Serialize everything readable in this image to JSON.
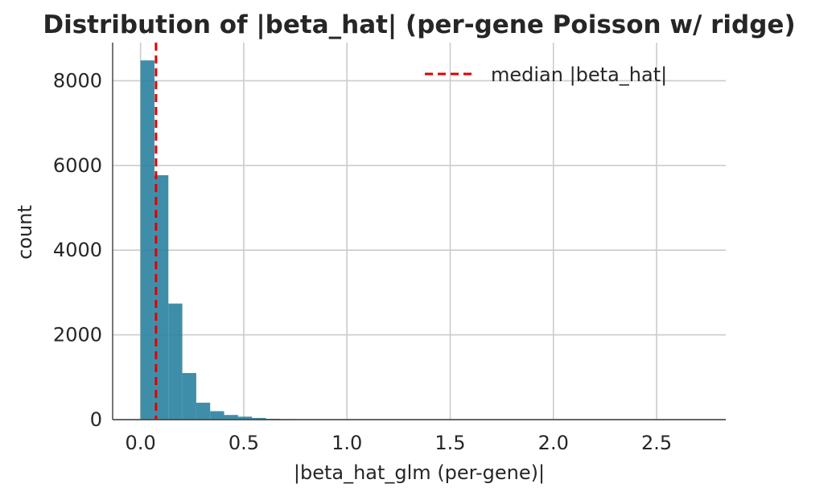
{
  "chart_data": {
    "type": "bar",
    "title": "Distribution of |beta_hat| (per-gene Poisson w/ ridge)",
    "xlabel": "|beta_hat_glm (per-gene)|",
    "ylabel": "count",
    "xlim": [
      -0.135,
      2.835
    ],
    "ylim": [
      0,
      8900
    ],
    "xticks": [
      0.0,
      0.5,
      1.0,
      1.5,
      2.0,
      2.5
    ],
    "xtick_labels": [
      "0.0",
      "0.5",
      "1.0",
      "1.5",
      "2.0",
      "2.5"
    ],
    "yticks": [
      0,
      2000,
      4000,
      6000,
      8000
    ],
    "ytick_labels": [
      "0",
      "2000",
      "4000",
      "6000",
      "8000"
    ],
    "bin_edges": [
      0.0,
      0.0675,
      0.135,
      0.2025,
      0.27,
      0.3375,
      0.405,
      0.4725,
      0.54,
      0.6075,
      0.675,
      0.7425,
      0.81,
      0.8775,
      0.945,
      1.0125,
      1.08,
      1.1475,
      1.215,
      1.2825,
      1.35,
      1.4175,
      1.485,
      1.5525,
      1.62,
      1.6875,
      1.755,
      1.8225,
      1.89,
      1.9575,
      2.025,
      2.0925,
      2.16,
      2.2275,
      2.295,
      2.3625,
      2.43,
      2.4975,
      2.565,
      2.6325,
      2.7
    ],
    "counts": [
      8480,
      5770,
      2740,
      1100,
      400,
      200,
      110,
      70,
      40,
      20,
      12,
      8,
      6,
      5,
      4,
      3,
      3,
      2,
      2,
      2,
      1,
      1,
      1,
      1,
      1,
      1,
      1,
      1,
      1,
      1,
      1,
      1,
      1,
      1,
      1,
      1,
      1,
      1,
      1,
      1
    ],
    "bar_color": "#2a82a0",
    "median": 0.075,
    "median_color": "#e00000",
    "legend": {
      "placement": "top-right",
      "label": "median |beta_hat|"
    },
    "grid": true
  }
}
